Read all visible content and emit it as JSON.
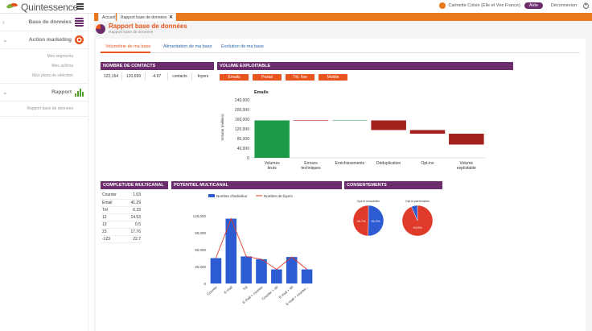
{
  "app": {
    "brand": "Quintessence",
    "user": "Carinette Colvin (Elle et Vire France)",
    "help_label": "Aide",
    "disconnect_label": "Déconnexion"
  },
  "tabs": [
    {
      "label": "Accueil"
    },
    {
      "label": "Rapport base de données"
    }
  ],
  "sidebar": {
    "sections": [
      {
        "label": "Base de données",
        "icon": "database-icon"
      },
      {
        "label": "Action marketing",
        "icon": "target-icon",
        "items": [
          "Mes segments",
          "Mes actions",
          "Mes plans de sélection"
        ]
      },
      {
        "label": "Rapport",
        "icon": "bar-chart-icon",
        "items": [
          "Rapport base de données"
        ]
      }
    ]
  },
  "page": {
    "title": "Rapport base de données",
    "breadcrumb": "Rapport base de données"
  },
  "subtabs": [
    "Volumétrie de ma base",
    "Alimentation de ma base",
    "Evolution de ma base"
  ],
  "panels": {
    "contacts": {
      "title": "NOMBRE DE CONTACTS",
      "values": [
        "122,154",
        "120,699",
        "-4.97",
        "contacts",
        "foyers"
      ]
    },
    "volume": {
      "title": "VOLUME EXPLOITABLE",
      "chips": [
        "Emails",
        "Postal",
        "Tél. fixe",
        "Mobile"
      ]
    },
    "completude": {
      "title": "COMPLETUDE MULTICANAL",
      "rows": [
        {
          "label": "Counter",
          "value": "1.03"
        },
        {
          "label": "Email",
          "value": "41.29"
        },
        {
          "label": "Tél",
          "value": "6.33"
        },
        {
          "label": "12",
          "value": "14.53"
        },
        {
          "label": "13",
          "value": "0.5"
        },
        {
          "label": "23",
          "value": "17.76"
        },
        {
          "label": "-123",
          "value": "22.7"
        }
      ]
    },
    "potentiel": {
      "title": "POTENTIEL MULTICANAL"
    },
    "consentements": {
      "title": "CONSENTEMENTS",
      "pie1_title": "Opt-in newsletter",
      "pie2_title": "Opt-in partenaires"
    }
  },
  "colors": {
    "purple": "#6b2d6b",
    "orange": "#e8541e",
    "green": "#1d9a47",
    "darkred": "#a3201d",
    "blue": "#2d5bd1",
    "red": "#e03a2a"
  },
  "chart_data": [
    {
      "type": "bar",
      "subtype": "waterfall",
      "title": "Emails",
      "ylabel": "Volume (milliers)",
      "ylim": [
        0,
        240000
      ],
      "yticks": [
        "0",
        "40,000",
        "80,000",
        "120,000",
        "160,000",
        "200,000",
        "240,000"
      ],
      "categories": [
        "Volumes bruts",
        "Erreurs techniques",
        "Enrichissements",
        "Déduplication",
        "Opt-ins",
        "Volume exploitable"
      ],
      "bars": [
        {
          "from": 0,
          "to": 155000
        },
        {
          "from": 155000,
          "to": 155000
        },
        {
          "from": 155000,
          "to": 155000
        },
        {
          "from": 155000,
          "to": 115000
        },
        {
          "from": 115000,
          "to": 100000
        },
        {
          "from": 100000,
          "to": 55000
        }
      ]
    },
    {
      "type": "bar",
      "title": "",
      "legend": [
        "Nombre d'individus",
        "Nombre de foyers"
      ],
      "ylim": [
        0,
        120000
      ],
      "yticks": [
        "0",
        "30,000",
        "60,000",
        "90,000",
        "120,000"
      ],
      "categories": [
        "Counter",
        "E-mail",
        "Tél",
        "E-mail + counter",
        "Counter + tél",
        "E-mail + tél",
        "E-mail + counter..."
      ],
      "series": [
        {
          "name": "Nombre d'individus",
          "values": [
            45000,
            115000,
            48000,
            43000,
            25000,
            47000,
            25000
          ]
        },
        {
          "name": "Nombre de foyers",
          "values": [
            45000,
            115000,
            48000,
            43000,
            25000,
            47000,
            25000
          ]
        }
      ]
    },
    {
      "type": "pie",
      "title": "Opt-in newsletter",
      "values": [
        50.3,
        49.7
      ],
      "labels": [
        "49.7%",
        "50.3%"
      ]
    },
    {
      "type": "pie",
      "title": "Opt-in partenaires",
      "values": [
        93.5,
        6.5
      ],
      "labels": [
        "93.5%",
        ""
      ]
    }
  ]
}
